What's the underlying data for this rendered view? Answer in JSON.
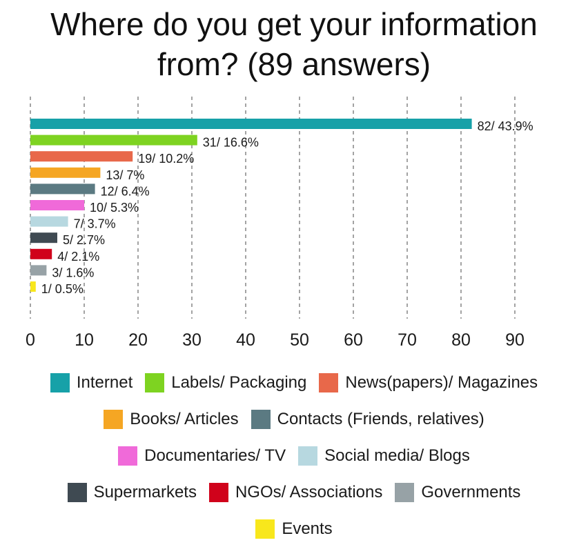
{
  "title_lines": [
    "Where do you get your information",
    "from? (89 answers)"
  ],
  "colors": {
    "grid": "#666666",
    "axis_text": "#1a1a1a",
    "label_text": "#1a1a1a"
  },
  "chart_data": {
    "type": "bar",
    "orientation": "horizontal",
    "title": "Where do you get your information from? (89 answers)",
    "xlim": [
      0,
      90
    ],
    "xticks": [
      0,
      10,
      20,
      30,
      40,
      50,
      60,
      70,
      80,
      90
    ],
    "grid": "vertical dashed",
    "legend_position": "bottom",
    "categories": [
      "Internet",
      "Labels/ Packaging",
      "News(papers)/ Magazines",
      "Books/ Articles",
      "Contacts (Friends, relatives)",
      "Documentaries/ TV",
      "Social media/ Blogs",
      "Supermarkets",
      "NGOs/ Associations",
      "Governments",
      "Events"
    ],
    "values": [
      82,
      31,
      19,
      13,
      12,
      10,
      7,
      5,
      4,
      3,
      1
    ],
    "data_labels": [
      "82/ 43.9%",
      "31/ 16.6%",
      "19/ 10.2%",
      "13/ 7%",
      "12/ 6.4%",
      "10/ 5.3%",
      "7/ 3.7%",
      "5/ 2.7%",
      "4/ 2.1%",
      "3/ 1.6%",
      "1/ 0.5%"
    ],
    "bar_colors": [
      "#17a1a8",
      "#7ed321",
      "#e8684a",
      "#f5a623",
      "#5b7a82",
      "#f06ad9",
      "#b7d8e0",
      "#3f4a52",
      "#d0021b",
      "#97a2a6",
      "#f8e71c"
    ]
  },
  "legend": {
    "rows": [
      [
        0,
        1,
        2
      ],
      [
        3,
        4
      ],
      [
        5,
        6
      ],
      [
        7,
        8,
        9
      ],
      [
        10
      ]
    ]
  }
}
